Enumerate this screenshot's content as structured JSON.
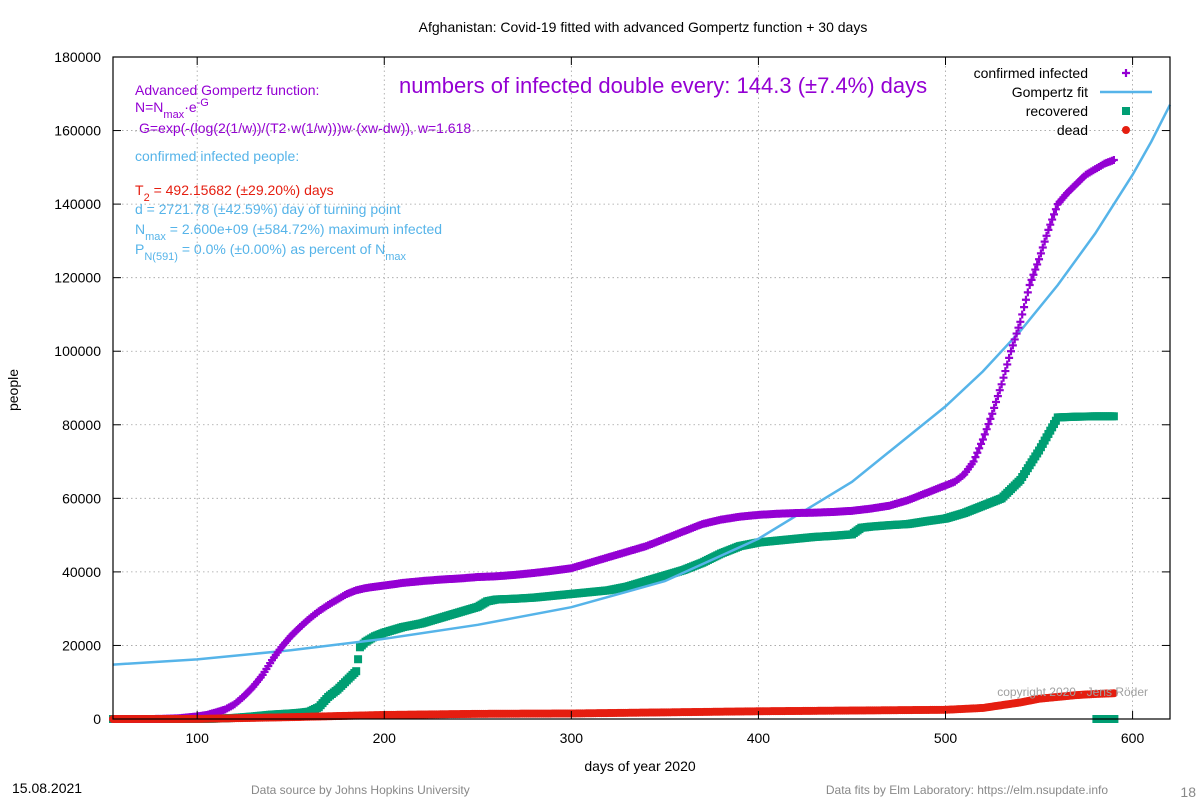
{
  "chart_data": {
    "type": "scatter",
    "title": "Afghanistan: Covid-19 fitted with advanced Gompertz function + 30 days",
    "xlabel": "days of year 2020",
    "ylabel": "people",
    "xlim": [
      55,
      620
    ],
    "ylim": [
      0,
      180000
    ],
    "x_ticks": [
      100,
      200,
      300,
      400,
      500,
      600
    ],
    "y_ticks": [
      0,
      20000,
      40000,
      60000,
      80000,
      100000,
      120000,
      140000,
      160000,
      180000
    ],
    "grid": true,
    "legend_position": "top-right",
    "series": [
      {
        "name": "confirmed infected",
        "color": "#9400d3",
        "marker": "plus",
        "points": [
          [
            55,
            0
          ],
          [
            70,
            5
          ],
          [
            80,
            22
          ],
          [
            90,
            200
          ],
          [
            100,
            700
          ],
          [
            105,
            1100
          ],
          [
            110,
            1800
          ],
          [
            115,
            2600
          ],
          [
            120,
            4000
          ],
          [
            125,
            6200
          ],
          [
            130,
            8800
          ],
          [
            135,
            12000
          ],
          [
            140,
            16000
          ],
          [
            145,
            19500
          ],
          [
            150,
            22500
          ],
          [
            155,
            25000
          ],
          [
            160,
            27300
          ],
          [
            165,
            29300
          ],
          [
            170,
            31000
          ],
          [
            175,
            32500
          ],
          [
            180,
            34000
          ],
          [
            185,
            35000
          ],
          [
            190,
            35600
          ],
          [
            200,
            36300
          ],
          [
            210,
            37000
          ],
          [
            220,
            37500
          ],
          [
            230,
            37900
          ],
          [
            240,
            38200
          ],
          [
            250,
            38600
          ],
          [
            260,
            38800
          ],
          [
            270,
            39200
          ],
          [
            280,
            39700
          ],
          [
            290,
            40300
          ],
          [
            300,
            41000
          ],
          [
            310,
            42500
          ],
          [
            320,
            44000
          ],
          [
            330,
            45500
          ],
          [
            340,
            47000
          ],
          [
            350,
            49000
          ],
          [
            360,
            51000
          ],
          [
            370,
            53000
          ],
          [
            380,
            54200
          ],
          [
            390,
            55000
          ],
          [
            400,
            55500
          ],
          [
            410,
            55800
          ],
          [
            420,
            56000
          ],
          [
            430,
            56100
          ],
          [
            440,
            56300
          ],
          [
            450,
            56600
          ],
          [
            460,
            57200
          ],
          [
            470,
            58000
          ],
          [
            480,
            59500
          ],
          [
            490,
            61500
          ],
          [
            500,
            63500
          ],
          [
            505,
            64500
          ],
          [
            510,
            66500
          ],
          [
            515,
            70000
          ],
          [
            520,
            76000
          ],
          [
            525,
            83000
          ],
          [
            530,
            91000
          ],
          [
            535,
            100000
          ],
          [
            540,
            108000
          ],
          [
            545,
            118000
          ],
          [
            550,
            125000
          ],
          [
            555,
            133000
          ],
          [
            560,
            140000
          ],
          [
            565,
            143000
          ],
          [
            570,
            145500
          ],
          [
            575,
            148000
          ],
          [
            580,
            149500
          ],
          [
            585,
            151000
          ],
          [
            590,
            152000
          ]
        ]
      },
      {
        "name": "Gompertz fit",
        "color": "#56b4e9",
        "marker": "line",
        "points": [
          [
            55,
            14800
          ],
          [
            100,
            16200
          ],
          [
            150,
            18700
          ],
          [
            200,
            21800
          ],
          [
            250,
            25600
          ],
          [
            300,
            30400
          ],
          [
            350,
            37500
          ],
          [
            400,
            49000
          ],
          [
            450,
            64500
          ],
          [
            500,
            85000
          ],
          [
            520,
            94500
          ],
          [
            540,
            105500
          ],
          [
            560,
            118000
          ],
          [
            580,
            132000
          ],
          [
            600,
            148000
          ],
          [
            610,
            157000
          ],
          [
            620,
            167000
          ]
        ]
      },
      {
        "name": "recovered",
        "color": "#009e73",
        "marker": "square",
        "points": [
          [
            55,
            0
          ],
          [
            100,
            0
          ],
          [
            110,
            100
          ],
          [
            120,
            300
          ],
          [
            130,
            700
          ],
          [
            140,
            1200
          ],
          [
            150,
            1500
          ],
          [
            155,
            1700
          ],
          [
            160,
            2000
          ],
          [
            165,
            3200
          ],
          [
            170,
            6000
          ],
          [
            175,
            8000
          ],
          [
            180,
            10500
          ],
          [
            185,
            13000
          ],
          [
            187,
            19500
          ],
          [
            190,
            21000
          ],
          [
            195,
            22500
          ],
          [
            200,
            23500
          ],
          [
            210,
            25000
          ],
          [
            220,
            26000
          ],
          [
            230,
            27500
          ],
          [
            240,
            29000
          ],
          [
            250,
            30500
          ],
          [
            255,
            32000
          ],
          [
            260,
            32500
          ],
          [
            270,
            32700
          ],
          [
            280,
            33000
          ],
          [
            290,
            33500
          ],
          [
            300,
            34000
          ],
          [
            310,
            34500
          ],
          [
            320,
            35000
          ],
          [
            330,
            36000
          ],
          [
            340,
            37500
          ],
          [
            350,
            39000
          ],
          [
            360,
            40500
          ],
          [
            370,
            42500
          ],
          [
            380,
            45000
          ],
          [
            390,
            47000
          ],
          [
            400,
            48000
          ],
          [
            410,
            48500
          ],
          [
            420,
            49000
          ],
          [
            430,
            49500
          ],
          [
            440,
            49800
          ],
          [
            450,
            50200
          ],
          [
            455,
            52000
          ],
          [
            460,
            52300
          ],
          [
            470,
            52700
          ],
          [
            480,
            53000
          ],
          [
            490,
            53800
          ],
          [
            500,
            54500
          ],
          [
            510,
            56000
          ],
          [
            520,
            58000
          ],
          [
            530,
            60000
          ],
          [
            540,
            65000
          ],
          [
            550,
            73000
          ],
          [
            560,
            82000
          ],
          [
            570,
            82200
          ],
          [
            580,
            82300
          ],
          [
            590,
            82300
          ]
        ]
      },
      {
        "name": "dead",
        "color": "#e51e10",
        "marker": "circle",
        "points": [
          [
            55,
            0
          ],
          [
            100,
            20
          ],
          [
            150,
            500
          ],
          [
            200,
            1100
          ],
          [
            250,
            1400
          ],
          [
            300,
            1500
          ],
          [
            350,
            1800
          ],
          [
            400,
            2100
          ],
          [
            450,
            2300
          ],
          [
            500,
            2500
          ],
          [
            520,
            3000
          ],
          [
            540,
            4500
          ],
          [
            550,
            5500
          ],
          [
            560,
            6000
          ],
          [
            570,
            6500
          ],
          [
            580,
            6800
          ],
          [
            590,
            7000
          ]
        ]
      }
    ],
    "extra_markers": [
      {
        "series": "recovered",
        "x": 586,
        "y": 0
      }
    ],
    "annotations": {
      "formula_heading": "Advanced Gompertz function:",
      "formula_line1_parts": [
        "N=N",
        "max",
        "·e",
        "-G"
      ],
      "formula_line2": "G=exp(-(log(2(1/w))/(T2·w(1/w)))w·(xw-dw)), w=1.618",
      "doubling_text": "numbers of infected double every: 144.3 (±7.4%) days",
      "confirmed_heading": "confirmed infected people:",
      "t2_parts": [
        "T",
        "2",
        " = 492.15682 (±29.20%) days"
      ],
      "d_text": "d = 2721.78 (±42.59%) day of turning point",
      "nmax_parts": [
        "N",
        "max",
        " = 2.600e+09 (±584.72%) maximum infected"
      ],
      "p_parts": [
        "P",
        "N(591)",
        " = 0.0% (±0.00%) as percent of N",
        "max"
      ],
      "copyright": "copyright 2020 · Jens Röder"
    }
  },
  "footer": {
    "date": "15.08.2021",
    "source": "Data source by Johns Hopkins University",
    "fits": "Data fits by Elm Laboratory: https://elm.nsupdate.info",
    "page_number": "18"
  },
  "colors": {
    "axis": "#000000",
    "grid": "#a0a0a0",
    "annotation_purple": "#9400d3",
    "annotation_blue": "#56b4e9",
    "annotation_red": "#e51e10",
    "footer_gray": "#888888"
  }
}
